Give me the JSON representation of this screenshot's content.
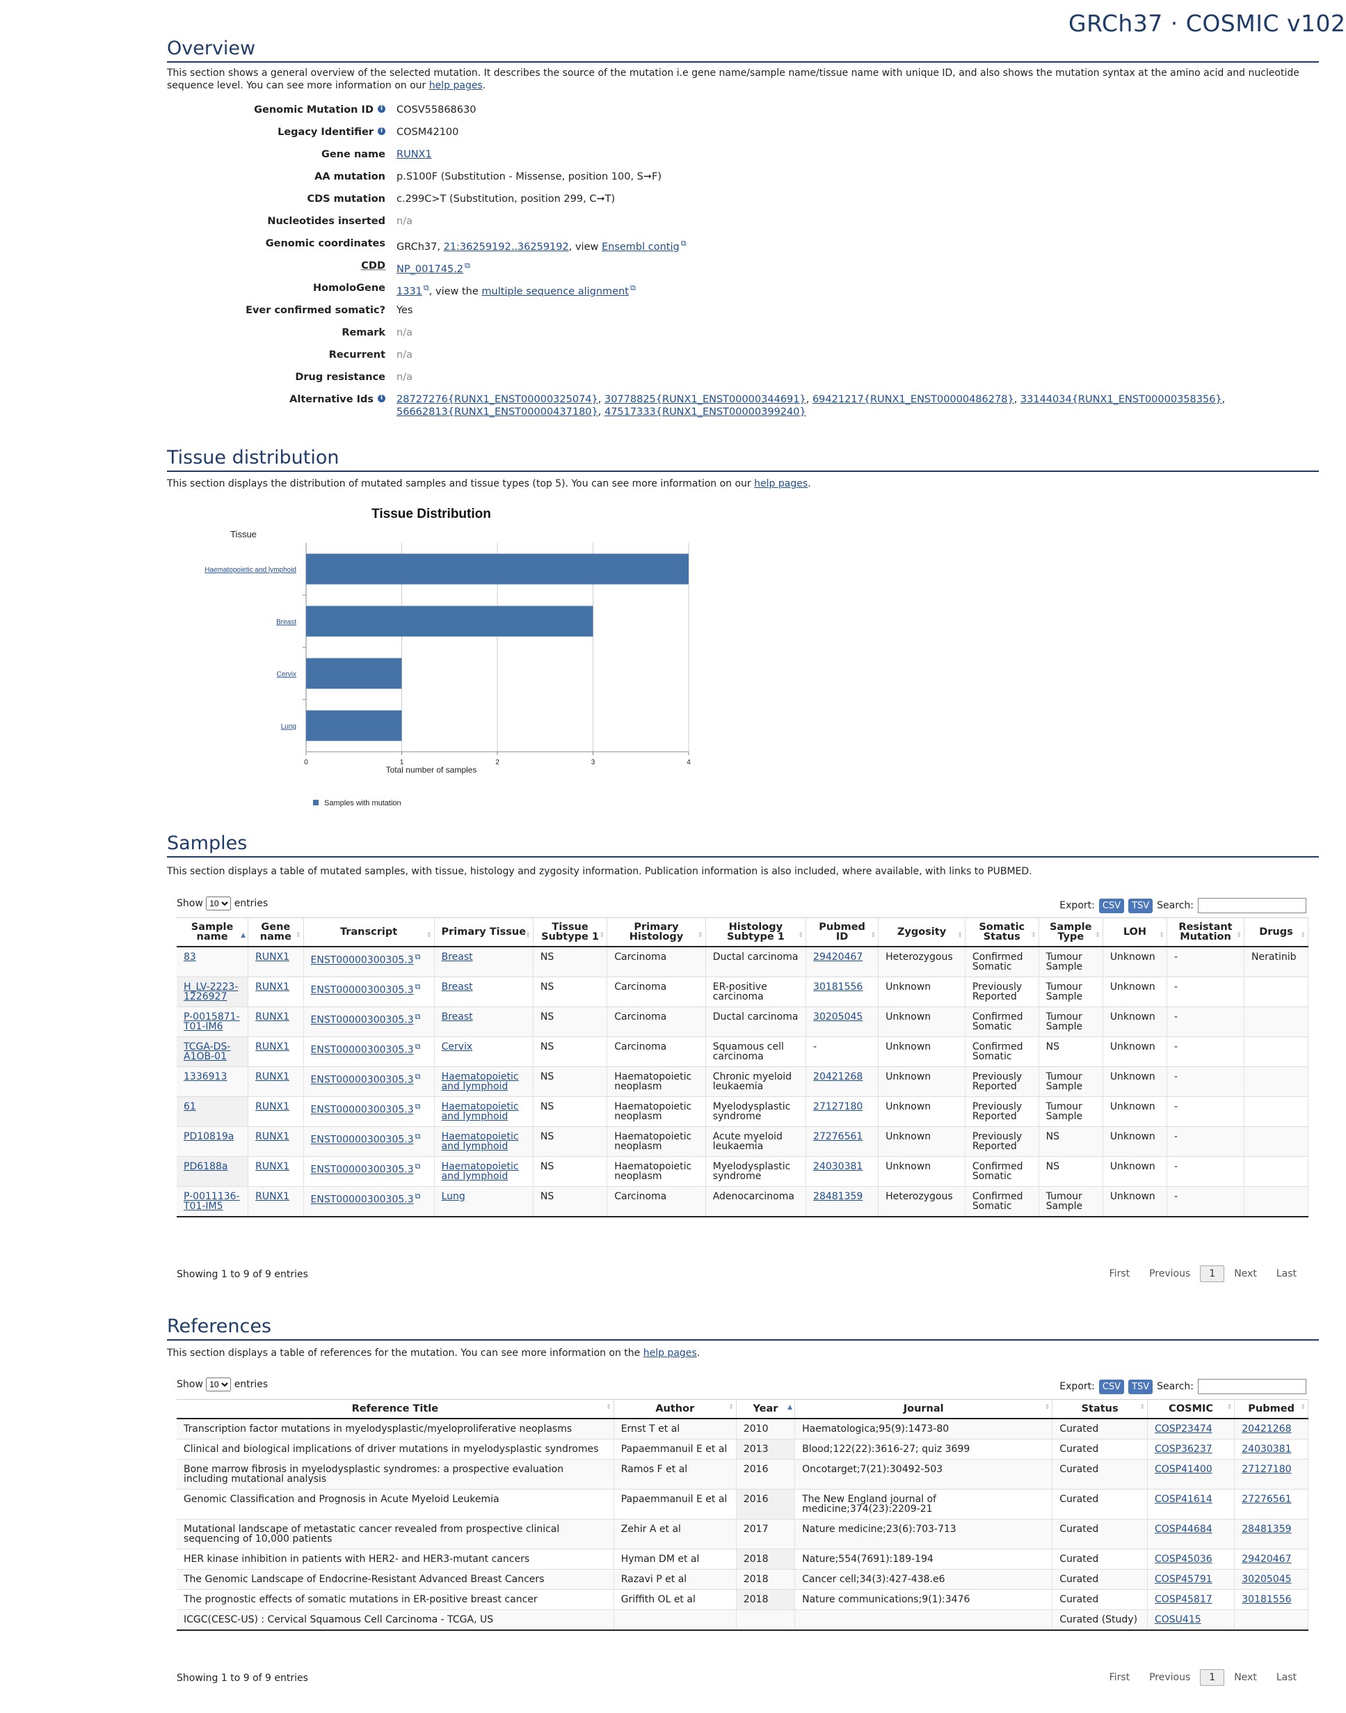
{
  "header": {
    "site_title": "GRCh37 · COSMIC v102"
  },
  "overview": {
    "title": "Overview",
    "desc_1": "This section shows a general overview of the selected mutation. It describes the source of the mutation i.e gene name/sample name/tissue name with unique ID, and also shows the mutation syntax at the amino acid and nucleotide sequence level. You can see more information on our ",
    "help_link": "help pages",
    "desc_end": ".",
    "fields": {
      "genomic_mutation_id": {
        "label": "Genomic Mutation ID",
        "value": "COSV55868630"
      },
      "legacy_identifier": {
        "label": "Legacy Identifier",
        "value": "COSM42100"
      },
      "gene_name": {
        "label": "Gene name",
        "value": "RUNX1"
      },
      "aa_mutation": {
        "label": "AA mutation",
        "value": "p.S100F (Substitution - Missense, position 100, S➞F)"
      },
      "cds_mutation": {
        "label": "CDS mutation",
        "value": "c.299C>T (Substitution, position 299, C➞T)"
      },
      "nucleotides_inserted": {
        "label": "Nucleotides inserted",
        "value": "n/a"
      },
      "genomic_coordinates": {
        "label": "Genomic coordinates",
        "prefix": "GRCh37, ",
        "link": "21:36259192..36259192",
        "mid": ", view ",
        "link2": "Ensembl contig"
      },
      "cdd": {
        "label": "CDD",
        "value": "NP_001745.2"
      },
      "homologene": {
        "label": "HomoloGene",
        "value": "1331",
        "mid": ", view the ",
        "link2": "multiple sequence alignment"
      },
      "ever_confirmed": {
        "label": "Ever confirmed somatic?",
        "value": "Yes"
      },
      "remark": {
        "label": "Remark",
        "value": "n/a"
      },
      "recurrent": {
        "label": "Recurrent",
        "value": "n/a"
      },
      "drug_resistance": {
        "label": "Drug resistance",
        "value": "n/a"
      },
      "alternative_ids": {
        "label": "Alternative Ids",
        "ids": [
          "28727276{RUNX1_ENST00000325074}",
          "30778825{RUNX1_ENST00000344691}",
          "69421217{RUNX1_ENST00000486278}",
          "33144034{RUNX1_ENST00000358356}",
          "56662813{RUNX1_ENST00000437180}",
          "47517333{RUNX1_ENST00000399240}"
        ]
      }
    }
  },
  "tissue": {
    "title": "Tissue distribution",
    "desc": "This section displays the distribution of mutated samples and tissue types (top 5). You can see more information on our ",
    "help_link": "help pages",
    "desc_end": "."
  },
  "chart_data": {
    "type": "bar",
    "orientation": "horizontal",
    "title": "Tissue Distribution",
    "ylabel": "Tissue",
    "xlabel": "Total number of samples",
    "categories": [
      "Haematopoietic and lymphoid",
      "Breast",
      "Cervix",
      "Lung"
    ],
    "series": [
      {
        "name": "Samples with mutation",
        "values": [
          4,
          3,
          1,
          1
        ]
      }
    ],
    "xlim": [
      0,
      4
    ],
    "xticks": [
      "0",
      "1",
      "2",
      "3",
      "4"
    ],
    "grid": true,
    "legend_position": "bottom-left",
    "color": "#4572a7"
  },
  "samples": {
    "title": "Samples",
    "desc": "This section displays a table of mutated samples, with tissue, histology and zygosity information. Publication information is also included, where available, with links to PUBMED.",
    "show_label": "Show",
    "entries_label": "entries",
    "page_size": "10",
    "export_label": "Export:",
    "csv": "CSV",
    "tsv": "TSV",
    "search_label": "Search:",
    "columns": [
      "Sample name",
      "Gene name",
      "Transcript",
      "Primary Tissue",
      "Tissue Subtype 1",
      "Primary Histology",
      "Histology Subtype 1",
      "Pubmed ID",
      "Zygosity",
      "Somatic Status",
      "Sample Type",
      "LOH",
      "Resistant Mutation",
      "Drugs"
    ],
    "rows": [
      [
        "83",
        "RUNX1",
        "ENST00000300305.3",
        "Breast",
        "NS",
        "Carcinoma",
        "Ductal carcinoma",
        "29420467",
        "Heterozygous",
        "Confirmed Somatic",
        "Tumour Sample",
        "Unknown",
        "-",
        "Neratinib"
      ],
      [
        "H_LV-2223-1226927",
        "RUNX1",
        "ENST00000300305.3",
        "Breast",
        "NS",
        "Carcinoma",
        "ER-positive carcinoma",
        "30181556",
        "Unknown",
        "Previously Reported",
        "Tumour Sample",
        "Unknown",
        "-",
        ""
      ],
      [
        "P-0015871-T01-IM6",
        "RUNX1",
        "ENST00000300305.3",
        "Breast",
        "NS",
        "Carcinoma",
        "Ductal carcinoma",
        "30205045",
        "Unknown",
        "Confirmed Somatic",
        "Tumour Sample",
        "Unknown",
        "-",
        ""
      ],
      [
        "TCGA-DS-A1OB-01",
        "RUNX1",
        "ENST00000300305.3",
        "Cervix",
        "NS",
        "Carcinoma",
        "Squamous cell carcinoma",
        "-",
        "Unknown",
        "Confirmed Somatic",
        "NS",
        "Unknown",
        "-",
        ""
      ],
      [
        "1336913",
        "RUNX1",
        "ENST00000300305.3",
        "Haematopoietic and lymphoid",
        "NS",
        "Haematopoietic neoplasm",
        "Chronic myeloid leukaemia",
        "20421268",
        "Unknown",
        "Previously Reported",
        "Tumour Sample",
        "Unknown",
        "-",
        ""
      ],
      [
        "61",
        "RUNX1",
        "ENST00000300305.3",
        "Haematopoietic and lymphoid",
        "NS",
        "Haematopoietic neoplasm",
        "Myelodysplastic syndrome",
        "27127180",
        "Unknown",
        "Previously Reported",
        "Tumour Sample",
        "Unknown",
        "-",
        ""
      ],
      [
        "PD10819a",
        "RUNX1",
        "ENST00000300305.3",
        "Haematopoietic and lymphoid",
        "NS",
        "Haematopoietic neoplasm",
        "Acute myeloid leukaemia",
        "27276561",
        "Unknown",
        "Previously Reported",
        "NS",
        "Unknown",
        "-",
        ""
      ],
      [
        "PD6188a",
        "RUNX1",
        "ENST00000300305.3",
        "Haematopoietic and lymphoid",
        "NS",
        "Haematopoietic neoplasm",
        "Myelodysplastic syndrome",
        "24030381",
        "Unknown",
        "Confirmed Somatic",
        "NS",
        "Unknown",
        "-",
        ""
      ],
      [
        "P-0011136-T01-IM5",
        "RUNX1",
        "ENST00000300305.3",
        "Lung",
        "NS",
        "Carcinoma",
        "Adenocarcinoma",
        "28481359",
        "Heterozygous",
        "Confirmed Somatic",
        "Tumour Sample",
        "Unknown",
        "-",
        ""
      ]
    ],
    "info": "Showing 1 to 9 of 9 entries",
    "pager": {
      "first": "First",
      "previous": "Previous",
      "current": "1",
      "next": "Next",
      "last": "Last"
    }
  },
  "references": {
    "title": "References",
    "desc": "This section displays a table of references for the mutation. You can see more information on the ",
    "help_link": "help pages",
    "desc_end": ".",
    "show_label": "Show",
    "entries_label": "entries",
    "page_size": "10",
    "export_label": "Export:",
    "csv": "CSV",
    "tsv": "TSV",
    "search_label": "Search:",
    "columns": [
      "Reference Title",
      "Author",
      "Year",
      "Journal",
      "Status",
      "COSMIC",
      "Pubmed"
    ],
    "rows": [
      [
        "Transcription factor mutations in myelodysplastic/myeloproliferative neoplasms",
        "Ernst T et al",
        "2010",
        "Haematologica;95(9):1473-80",
        "Curated",
        "COSP23474",
        "20421268"
      ],
      [
        "Clinical and biological implications of driver mutations in myelodysplastic syndromes",
        "Papaemmanuil E et al",
        "2013",
        "Blood;122(22):3616-27; quiz 3699",
        "Curated",
        "COSP36237",
        "24030381"
      ],
      [
        "Bone marrow fibrosis in myelodysplastic syndromes: a prospective evaluation including mutational analysis",
        "Ramos F et al",
        "2016",
        "Oncotarget;7(21):30492-503",
        "Curated",
        "COSP41400",
        "27127180"
      ],
      [
        "Genomic Classification and Prognosis in Acute Myeloid Leukemia",
        "Papaemmanuil E et al",
        "2016",
        "The New England journal of medicine;374(23):2209-21",
        "Curated",
        "COSP41614",
        "27276561"
      ],
      [
        "Mutational landscape of metastatic cancer revealed from prospective clinical sequencing of 10,000 patients",
        "Zehir A et al",
        "2017",
        "Nature medicine;23(6):703-713",
        "Curated",
        "COSP44684",
        "28481359"
      ],
      [
        "HER kinase inhibition in patients with HER2- and HER3-mutant cancers",
        "Hyman DM et al",
        "2018",
        "Nature;554(7691):189-194",
        "Curated",
        "COSP45036",
        "29420467"
      ],
      [
        "The Genomic Landscape of Endocrine-Resistant Advanced Breast Cancers",
        "Razavi P et al",
        "2018",
        "Cancer cell;34(3):427-438.e6",
        "Curated",
        "COSP45791",
        "30205045"
      ],
      [
        "The prognostic effects of somatic mutations in ER-positive breast cancer",
        "Griffith OL et al",
        "2018",
        "Nature communications;9(1):3476",
        "Curated",
        "COSP45817",
        "30181556"
      ],
      [
        "ICGC(CESC-US) : Cervical Squamous Cell Carcinoma - TCGA, US",
        "",
        "",
        "",
        "Curated (Study)",
        "COSU415",
        ""
      ]
    ],
    "info": "Showing 1 to 9 of 9 entries",
    "pager": {
      "first": "First",
      "previous": "Previous",
      "current": "1",
      "next": "Next",
      "last": "Last"
    }
  }
}
